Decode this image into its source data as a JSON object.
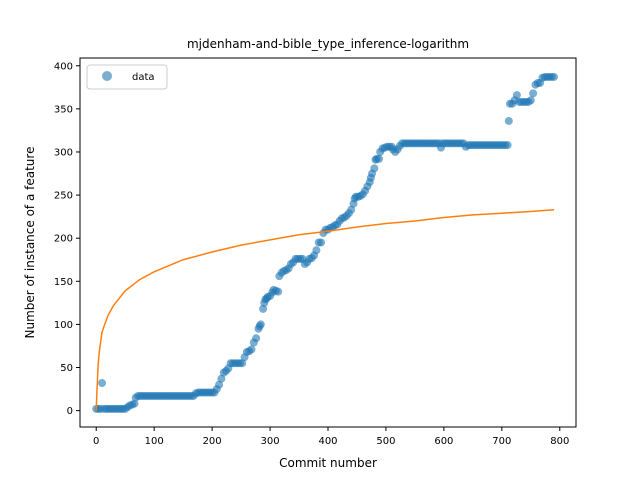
{
  "chart_data": {
    "type": "scatter",
    "title": "mjdenham-and-bible_type_inference-logarithm",
    "xlabel": "Commit number",
    "ylabel": "Number of instance of a feature",
    "xlim": [
      -28,
      828
    ],
    "ylim": [
      -19,
      409
    ],
    "xticks": [
      0,
      100,
      200,
      300,
      400,
      500,
      600,
      700,
      800
    ],
    "yticks": [
      0,
      50,
      100,
      150,
      200,
      250,
      300,
      350,
      400
    ],
    "grid": false,
    "legend": {
      "placement": "top-left",
      "entries": [
        "data"
      ]
    },
    "series": [
      {
        "name": "data",
        "kind": "scatter",
        "color": "#1f77b4",
        "opacity": 0.6,
        "points": [
          [
            0,
            2
          ],
          [
            4,
            2
          ],
          [
            8,
            2
          ],
          [
            10,
            32
          ],
          [
            14,
            2
          ],
          [
            18,
            2
          ],
          [
            22,
            2
          ],
          [
            26,
            2
          ],
          [
            30,
            2
          ],
          [
            34,
            2
          ],
          [
            38,
            2
          ],
          [
            42,
            2
          ],
          [
            46,
            2
          ],
          [
            50,
            2
          ],
          [
            54,
            4
          ],
          [
            58,
            6
          ],
          [
            62,
            7
          ],
          [
            66,
            8
          ],
          [
            68,
            15
          ],
          [
            72,
            17
          ],
          [
            76,
            17
          ],
          [
            80,
            17
          ],
          [
            84,
            17
          ],
          [
            88,
            17
          ],
          [
            92,
            17
          ],
          [
            96,
            17
          ],
          [
            100,
            17
          ],
          [
            104,
            17
          ],
          [
            108,
            17
          ],
          [
            112,
            17
          ],
          [
            116,
            17
          ],
          [
            120,
            17
          ],
          [
            124,
            17
          ],
          [
            128,
            17
          ],
          [
            132,
            17
          ],
          [
            136,
            17
          ],
          [
            140,
            17
          ],
          [
            144,
            17
          ],
          [
            148,
            17
          ],
          [
            152,
            17
          ],
          [
            156,
            17
          ],
          [
            160,
            17
          ],
          [
            164,
            17
          ],
          [
            168,
            17
          ],
          [
            172,
            20
          ],
          [
            176,
            21
          ],
          [
            180,
            21
          ],
          [
            184,
            21
          ],
          [
            188,
            21
          ],
          [
            192,
            21
          ],
          [
            196,
            21
          ],
          [
            200,
            21
          ],
          [
            204,
            21
          ],
          [
            208,
            25
          ],
          [
            212,
            30
          ],
          [
            216,
            37
          ],
          [
            220,
            44
          ],
          [
            224,
            46
          ],
          [
            228,
            49
          ],
          [
            232,
            55
          ],
          [
            236,
            55
          ],
          [
            240,
            55
          ],
          [
            244,
            55
          ],
          [
            248,
            55
          ],
          [
            252,
            55
          ],
          [
            256,
            62
          ],
          [
            260,
            68
          ],
          [
            264,
            69
          ],
          [
            268,
            71
          ],
          [
            272,
            79
          ],
          [
            276,
            84
          ],
          [
            280,
            95
          ],
          [
            282,
            98
          ],
          [
            284,
            100
          ],
          [
            288,
            118
          ],
          [
            290,
            125
          ],
          [
            292,
            129
          ],
          [
            294,
            130
          ],
          [
            296,
            132
          ],
          [
            300,
            133
          ],
          [
            304,
            137
          ],
          [
            306,
            140
          ],
          [
            310,
            139
          ],
          [
            314,
            138
          ],
          [
            316,
            156
          ],
          [
            320,
            160
          ],
          [
            324,
            162
          ],
          [
            328,
            163
          ],
          [
            332,
            165
          ],
          [
            336,
            170
          ],
          [
            340,
            172
          ],
          [
            344,
            176
          ],
          [
            348,
            176
          ],
          [
            352,
            176
          ],
          [
            356,
            176
          ],
          [
            360,
            170
          ],
          [
            364,
            172
          ],
          [
            368,
            176
          ],
          [
            372,
            177
          ],
          [
            376,
            180
          ],
          [
            380,
            186
          ],
          [
            384,
            195
          ],
          [
            388,
            195
          ],
          [
            392,
            206
          ],
          [
            396,
            210
          ],
          [
            400,
            210
          ],
          [
            404,
            212
          ],
          [
            408,
            213
          ],
          [
            412,
            215
          ],
          [
            416,
            216
          ],
          [
            420,
            220
          ],
          [
            424,
            223
          ],
          [
            428,
            224
          ],
          [
            432,
            226
          ],
          [
            436,
            229
          ],
          [
            440,
            233
          ],
          [
            444,
            240
          ],
          [
            446,
            246
          ],
          [
            448,
            248
          ],
          [
            452,
            248
          ],
          [
            456,
            249
          ],
          [
            460,
            251
          ],
          [
            464,
            255
          ],
          [
            468,
            260
          ],
          [
            472,
            265
          ],
          [
            474,
            270
          ],
          [
            476,
            275
          ],
          [
            480,
            281
          ],
          [
            482,
            291
          ],
          [
            484,
            292
          ],
          [
            488,
            292
          ],
          [
            490,
            300
          ],
          [
            494,
            304
          ],
          [
            498,
            305
          ],
          [
            502,
            306
          ],
          [
            506,
            306
          ],
          [
            510,
            306
          ],
          [
            512,
            303
          ],
          [
            516,
            300
          ],
          [
            520,
            303
          ],
          [
            524,
            307
          ],
          [
            528,
            310
          ],
          [
            532,
            310
          ],
          [
            536,
            310
          ],
          [
            540,
            310
          ],
          [
            544,
            310
          ],
          [
            548,
            310
          ],
          [
            552,
            310
          ],
          [
            556,
            310
          ],
          [
            560,
            310
          ],
          [
            564,
            310
          ],
          [
            568,
            310
          ],
          [
            572,
            310
          ],
          [
            576,
            310
          ],
          [
            580,
            310
          ],
          [
            584,
            310
          ],
          [
            588,
            310
          ],
          [
            592,
            310
          ],
          [
            595,
            305
          ],
          [
            598,
            310
          ],
          [
            602,
            310
          ],
          [
            606,
            310
          ],
          [
            610,
            310
          ],
          [
            614,
            310
          ],
          [
            618,
            310
          ],
          [
            622,
            310
          ],
          [
            626,
            310
          ],
          [
            630,
            310
          ],
          [
            634,
            310
          ],
          [
            638,
            306
          ],
          [
            642,
            308
          ],
          [
            646,
            308
          ],
          [
            650,
            308
          ],
          [
            654,
            308
          ],
          [
            658,
            308
          ],
          [
            662,
            308
          ],
          [
            666,
            308
          ],
          [
            670,
            308
          ],
          [
            674,
            308
          ],
          [
            678,
            308
          ],
          [
            682,
            308
          ],
          [
            686,
            308
          ],
          [
            690,
            308
          ],
          [
            694,
            308
          ],
          [
            698,
            308
          ],
          [
            702,
            308
          ],
          [
            706,
            308
          ],
          [
            710,
            308
          ],
          [
            712,
            336
          ],
          [
            714,
            356
          ],
          [
            718,
            356
          ],
          [
            722,
            360
          ],
          [
            726,
            366
          ],
          [
            730,
            358
          ],
          [
            734,
            358
          ],
          [
            738,
            358
          ],
          [
            742,
            358
          ],
          [
            746,
            358
          ],
          [
            750,
            360
          ],
          [
            754,
            368
          ],
          [
            758,
            378
          ],
          [
            762,
            380
          ],
          [
            766,
            380
          ],
          [
            770,
            386
          ],
          [
            774,
            387
          ],
          [
            778,
            387
          ],
          [
            782,
            387
          ],
          [
            786,
            387
          ],
          [
            790,
            387
          ]
        ]
      },
      {
        "kind": "line",
        "color": "#ff7f0e",
        "model": "logarithm",
        "points": [
          [
            0,
            0
          ],
          [
            1,
            19
          ],
          [
            2,
            33
          ],
          [
            3,
            50
          ],
          [
            5,
            67
          ],
          [
            10,
            91
          ],
          [
            20,
            110
          ],
          [
            30,
            122
          ],
          [
            50,
            139
          ],
          [
            75,
            152
          ],
          [
            100,
            161
          ],
          [
            150,
            175
          ],
          [
            200,
            184
          ],
          [
            250,
            192
          ],
          [
            300,
            198
          ],
          [
            350,
            204
          ],
          [
            400,
            208
          ],
          [
            450,
            213
          ],
          [
            500,
            217
          ],
          [
            550,
            220
          ],
          [
            600,
            224
          ],
          [
            650,
            227
          ],
          [
            700,
            229
          ],
          [
            750,
            231
          ],
          [
            790,
            233
          ]
        ]
      }
    ]
  }
}
